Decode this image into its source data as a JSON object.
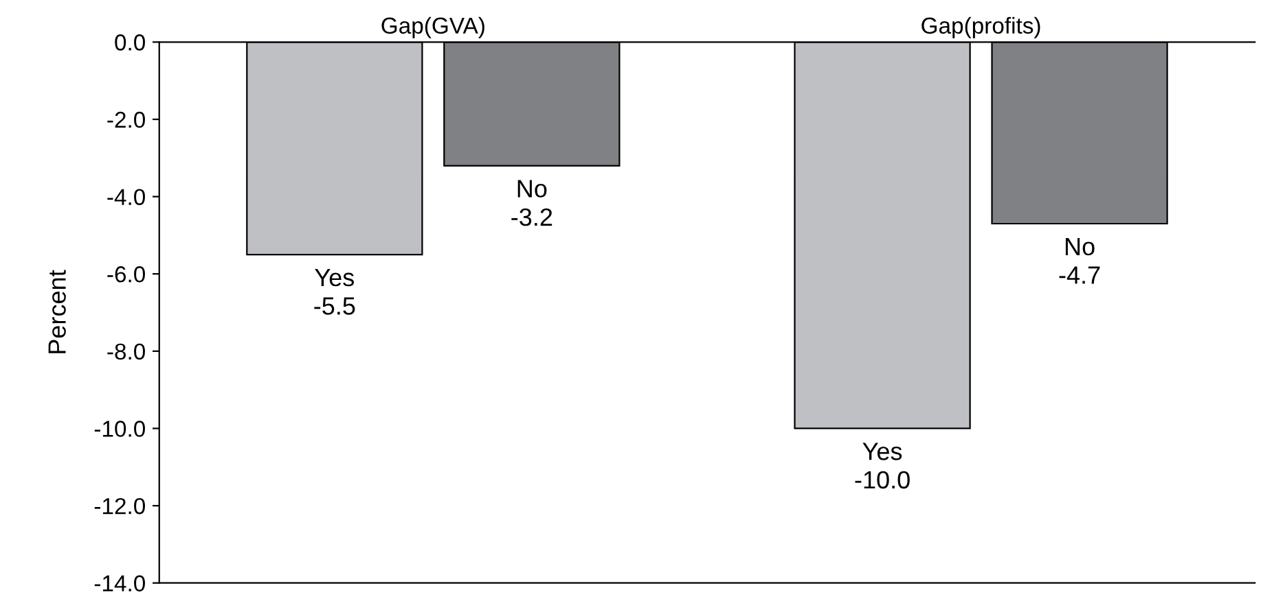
{
  "chart_data": {
    "type": "bar",
    "ylabel": "Percent",
    "categories": [
      "Gap(GVA)",
      "Gap(profits)"
    ],
    "series": [
      {
        "name": "Yes",
        "color": "#bfc0c4",
        "values": [
          -5.5,
          -10.0
        ],
        "value_labels": [
          "-5.5",
          "-10.0"
        ]
      },
      {
        "name": "No",
        "color": "#808184",
        "values": [
          -3.2,
          -4.7
        ],
        "value_labels": [
          "-3.2",
          "-4.7"
        ]
      }
    ],
    "ylim": [
      -14,
      0
    ],
    "yticks": [
      {
        "value": 0,
        "label": "0.0"
      },
      {
        "value": -2,
        "label": "-2.0"
      },
      {
        "value": -4,
        "label": "-4.0"
      },
      {
        "value": -6,
        "label": "-6.0"
      },
      {
        "value": -8,
        "label": "-8.0"
      },
      {
        "value": -10,
        "label": "-10.0"
      },
      {
        "value": -12,
        "label": "-12.0"
      },
      {
        "value": -14,
        "label": "-14.0"
      }
    ],
    "grid": false,
    "legend": false
  }
}
